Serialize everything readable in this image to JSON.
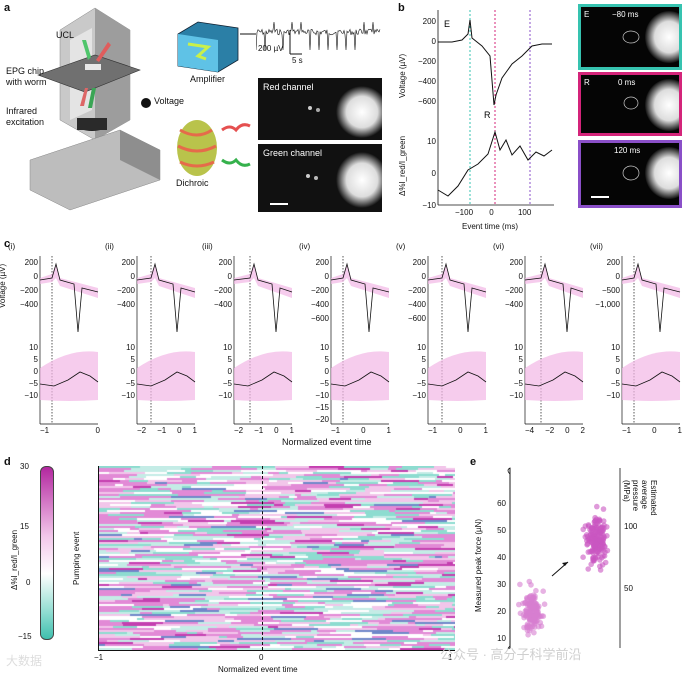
{
  "panel_letters": {
    "a": "a",
    "b": "b",
    "c": "c",
    "d": "d",
    "e": "e"
  },
  "panel_a": {
    "ucl_label": "UCL",
    "epg_label_line1": "EPG chip",
    "epg_label_line2": "with worm",
    "ir_label_line1": "Infrared",
    "ir_label_line2": "excitation",
    "amplifier_label": "Amplifier",
    "voltage_label": "Voltage",
    "dichroic_label": "Dichroic",
    "red_channel_label": "Red channel",
    "green_channel_label": "Green channel",
    "scale_v": "200 µV",
    "scale_t": "5 s"
  },
  "panel_b": {
    "ylabel_top": "Voltage (µV)",
    "ylabel_bottom": "Δ%I_red/I_green",
    "xlabel": "Event time (ms)",
    "marker_e": "E",
    "marker_r": "R",
    "yticks_top": [
      "200",
      "0",
      "−200",
      "−400",
      "−600"
    ],
    "yticks_bottom": [
      "10",
      "0",
      "−10"
    ],
    "xticks": [
      "−100",
      "0",
      "100"
    ],
    "insets": [
      {
        "tag": "E",
        "time": "−80 ms",
        "color": "#36c3b0"
      },
      {
        "tag": "R",
        "time": "0 ms",
        "color": "#d4247a"
      },
      {
        "tag": "",
        "time": "120 ms",
        "color": "#8a4fc8"
      }
    ]
  },
  "panel_c": {
    "xlabel": "Normalized event time",
    "ylabel_top": "Voltage (µV)",
    "ylabel_bottom": "Δ%I_red/I_green",
    "subpanels": [
      {
        "id": "(i)",
        "yticks_top": [
          "200",
          "0",
          "−200",
          "−400"
        ],
        "yticks_bottom": [
          "10",
          "5",
          "0",
          "−5",
          "−10"
        ],
        "xticks": [
          "−1",
          "0"
        ]
      },
      {
        "id": "(ii)",
        "yticks_top": [
          "200",
          "0",
          "−200",
          "−400"
        ],
        "yticks_bottom": [
          "10",
          "5",
          "0",
          "−5",
          "−10"
        ],
        "xticks": [
          "−2",
          "−1",
          "0",
          "1"
        ]
      },
      {
        "id": "(iii)",
        "yticks_top": [
          "200",
          "0",
          "−200",
          "−400"
        ],
        "yticks_bottom": [
          "10",
          "5",
          "0",
          "−5",
          "−10"
        ],
        "xticks": [
          "−2",
          "−1",
          "0",
          "1"
        ]
      },
      {
        "id": "(iv)",
        "yticks_top": [
          "200",
          "0",
          "−200",
          "−400",
          "−600"
        ],
        "yticks_bottom": [
          "10",
          "5",
          "0",
          "−5",
          "−10",
          "−15",
          "−20"
        ],
        "xticks": [
          "−1",
          "0",
          "1"
        ]
      },
      {
        "id": "(v)",
        "yticks_top": [
          "200",
          "0",
          "−200",
          "−400",
          "−600"
        ],
        "yticks_bottom": [
          "10",
          "5",
          "0",
          "−5",
          "−10"
        ],
        "xticks": [
          "−1",
          "0",
          "1"
        ]
      },
      {
        "id": "(vi)",
        "yticks_top": [
          "200",
          "0",
          "−200",
          "−400"
        ],
        "yticks_bottom": [
          "10",
          "5",
          "0",
          "−5",
          "−10"
        ],
        "xticks": [
          "−4",
          "−2",
          "0",
          "2"
        ]
      },
      {
        "id": "(vii)",
        "yticks_top": [
          "200",
          "0",
          "−500",
          "−1,000"
        ],
        "yticks_bottom": [
          "10",
          "5",
          "0",
          "−5",
          "−10"
        ],
        "xticks": [
          "−1",
          "0",
          "1"
        ]
      }
    ]
  },
  "panel_d": {
    "colorbar_ticks": [
      "30",
      "15",
      "0",
      "−15"
    ],
    "colorbar_label": "Δ%I_red/I_green",
    "ylabel": "Pumping event",
    "xticks": [
      "−1",
      "0",
      "1"
    ],
    "xlabel": "Normalized event time"
  },
  "panel_e": {
    "ylabel_left": "Measured peak force (µN)",
    "ylabel_right": "Estimated average pressure (MPa)",
    "yticks_left": [
      "60",
      "50",
      "40",
      "30",
      "20",
      "10"
    ],
    "yticks_right": [
      "100",
      "50"
    ]
  },
  "watermark": {
    "left": "大数据",
    "right": "公众号 · 高分子科学前沿"
  }
}
